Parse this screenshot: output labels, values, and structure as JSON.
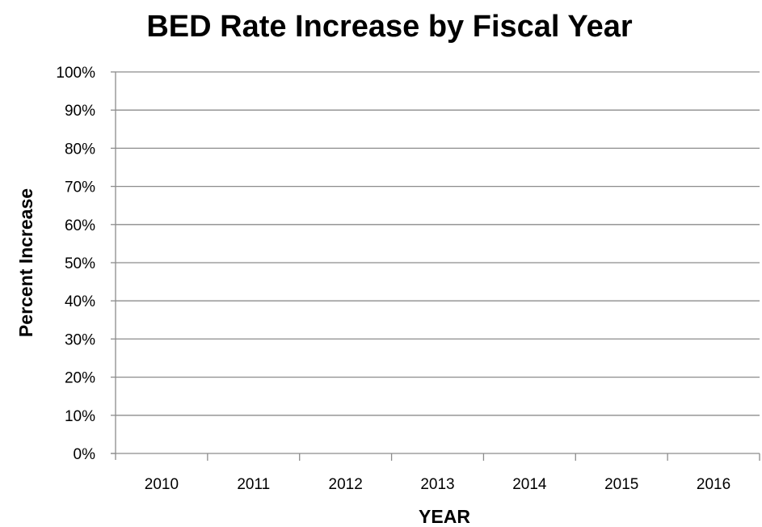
{
  "chart_data": {
    "type": "bar",
    "title": "BED Rate Increase by Fiscal Year",
    "xlabel": "YEAR",
    "ylabel": "Percent Increase",
    "categories": [
      "2010",
      "2011",
      "2012",
      "2013",
      "2014",
      "2015",
      "2016"
    ],
    "series": [],
    "ylim": [
      0,
      100
    ],
    "y_ticks": [
      "0%",
      "10%",
      "20%",
      "30%",
      "40%",
      "50%",
      "60%",
      "70%",
      "80%",
      "90%",
      "100%"
    ],
    "grid": true,
    "legend": "none",
    "colors": {
      "grid": "#8c8c8c",
      "text": "#000000",
      "background": "#ffffff"
    }
  }
}
